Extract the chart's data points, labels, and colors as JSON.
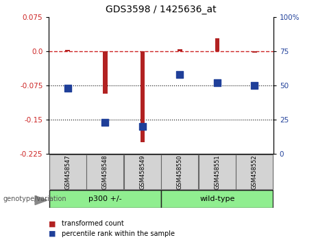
{
  "title": "GDS3598 / 1425636_at",
  "samples": [
    "GSM458547",
    "GSM458548",
    "GSM458549",
    "GSM458550",
    "GSM458551",
    "GSM458552"
  ],
  "red_values": [
    0.002,
    -0.093,
    -0.2,
    0.004,
    0.028,
    -0.003
  ],
  "blue_values_pct": [
    48,
    23,
    20,
    58,
    52,
    50
  ],
  "ylim_left": [
    -0.225,
    0.075
  ],
  "ylim_right": [
    0,
    100
  ],
  "yticks_left": [
    0.075,
    0.0,
    -0.075,
    -0.15,
    -0.225
  ],
  "yticks_right": [
    100,
    75,
    50,
    25,
    0
  ],
  "group1_label": "p300 +/-",
  "group2_label": "wild-type",
  "group1_indices": [
    0,
    1,
    2
  ],
  "group2_indices": [
    3,
    4,
    5
  ],
  "xlabel_bottom": "genotype/variation",
  "legend_red": "transformed count",
  "legend_blue": "percentile rank within the sample",
  "bar_color": "#B22222",
  "dot_color": "#1F3F99",
  "ref_line_color": "#CC2222",
  "background_color": "#ffffff",
  "plot_bg": "#ffffff",
  "group_bg": "#90EE90",
  "sample_box_bg": "#D3D3D3"
}
